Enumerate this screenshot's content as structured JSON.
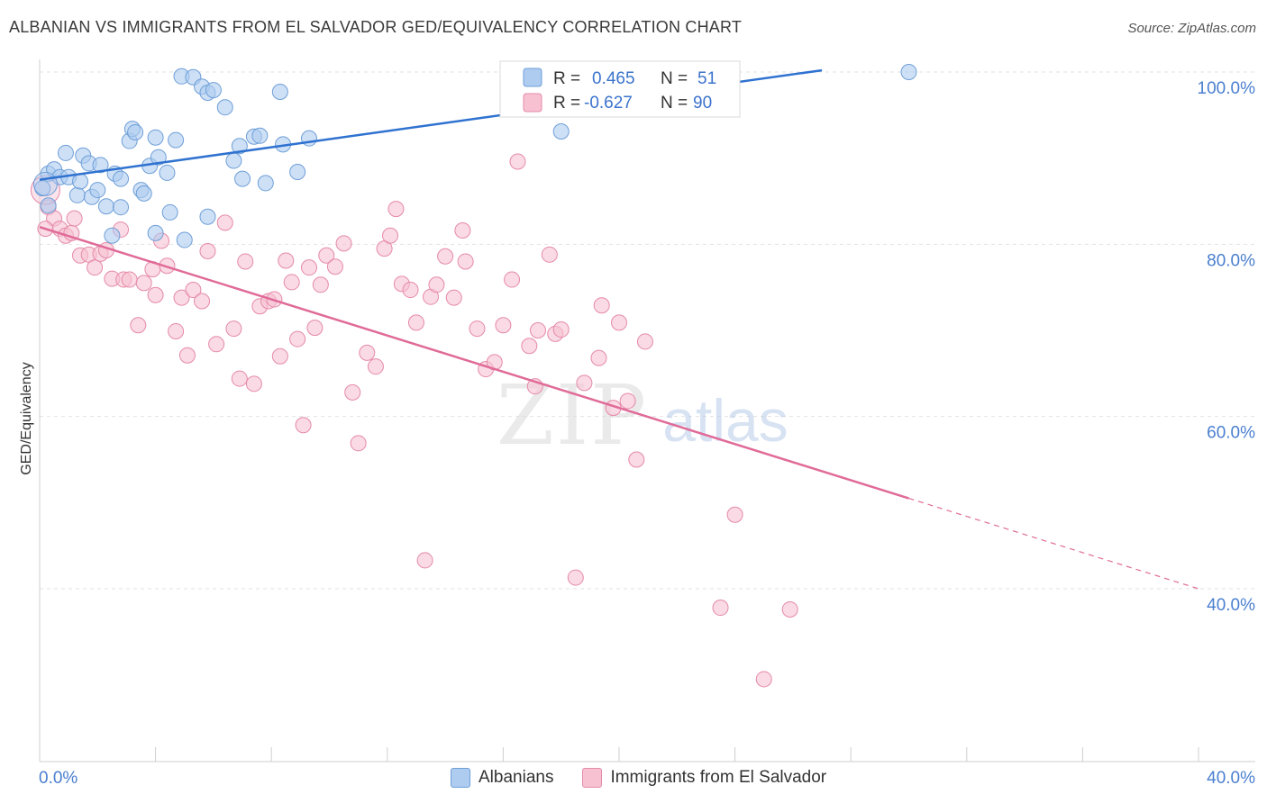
{
  "header": {
    "title": "ALBANIAN VS IMMIGRANTS FROM EL SALVADOR GED/EQUIVALENCY CORRELATION CHART",
    "source": "Source: ZipAtlas.com"
  },
  "watermark": {
    "zip": "ZIP",
    "atlas": "atlas"
  },
  "legend_top": [
    {
      "r_label": "R =",
      "r_value": "0.465",
      "n_label": "N =",
      "n_value": "51"
    },
    {
      "r_label": "R =",
      "r_value": "-0.627",
      "n_label": "N =",
      "n_value": "90"
    }
  ],
  "colors": {
    "blue_fill": "#aecbf0",
    "blue_stroke": "#6e9fd8",
    "blue_line": "#2f72d0",
    "pink_fill": "#f7c1d2",
    "pink_stroke": "#e58aa8",
    "pink_line": "#e06b98",
    "tick_text": "#4a7fcf"
  },
  "chart_data": {
    "type": "scatter",
    "ylabel": "GED/Equivalency",
    "xlabel": "",
    "xlim": [
      0,
      40
    ],
    "ylim": [
      22,
      102
    ],
    "x_tick_labels": [
      {
        "value": 0,
        "label": "0.0%"
      },
      {
        "value": 40,
        "label": "40.0%"
      }
    ],
    "y_tick_labels": [
      {
        "value": 100,
        "label": "100.0%"
      },
      {
        "value": 80,
        "label": "80.0%"
      },
      {
        "value": 60,
        "label": "60.0%"
      },
      {
        "value": 40,
        "label": "40.0%"
      }
    ],
    "grid": true,
    "series": [
      {
        "name": "Albanians",
        "color": "#aecbf0",
        "trendline": {
          "x": [
            0,
            27
          ],
          "y": [
            87.5,
            100.2
          ],
          "style": "solid"
        },
        "points": [
          [
            0.1,
            86.5
          ],
          [
            0.3,
            88.2
          ],
          [
            0.5,
            88.7
          ],
          [
            0.9,
            90.6
          ],
          [
            1.5,
            90.3
          ],
          [
            1.7,
            89.4
          ],
          [
            2.1,
            89.2
          ],
          [
            2.6,
            88.2
          ],
          [
            2.8,
            87.6
          ],
          [
            3.1,
            92.0
          ],
          [
            3.2,
            93.4
          ],
          [
            3.3,
            93.0
          ],
          [
            3.8,
            89.1
          ],
          [
            4.0,
            92.4
          ],
          [
            4.1,
            90.1
          ],
          [
            4.4,
            88.3
          ],
          [
            4.7,
            92.1
          ],
          [
            4.9,
            99.5
          ],
          [
            5.3,
            99.4
          ],
          [
            5.6,
            98.3
          ],
          [
            5.8,
            97.6
          ],
          [
            6.0,
            97.9
          ],
          [
            6.4,
            95.9
          ],
          [
            6.9,
            91.4
          ],
          [
            6.7,
            89.7
          ],
          [
            7.0,
            87.6
          ],
          [
            7.4,
            92.5
          ],
          [
            7.6,
            92.6
          ],
          [
            7.8,
            87.1
          ],
          [
            8.4,
            91.6
          ],
          [
            8.3,
            97.7
          ],
          [
            8.9,
            88.4
          ],
          [
            9.3,
            92.3
          ],
          [
            0.3,
            84.5
          ],
          [
            0.7,
            87.8
          ],
          [
            1.0,
            87.8
          ],
          [
            1.3,
            85.7
          ],
          [
            1.4,
            87.3
          ],
          [
            1.8,
            85.5
          ],
          [
            2.0,
            86.3
          ],
          [
            2.3,
            84.4
          ],
          [
            2.5,
            81.0
          ],
          [
            2.8,
            84.3
          ],
          [
            3.5,
            86.3
          ],
          [
            3.6,
            85.9
          ],
          [
            4.0,
            81.3
          ],
          [
            4.5,
            83.7
          ],
          [
            5.0,
            80.5
          ],
          [
            5.8,
            83.2
          ],
          [
            18.0,
            93.1
          ],
          [
            30.0,
            100.0
          ]
        ]
      },
      {
        "name": "Immigrants from El Salvador",
        "color": "#f7c1d2",
        "trendline": {
          "x": [
            0,
            30
          ],
          "y": [
            82.0,
            50.5
          ],
          "style": "solid",
          "dashed_to": [
            40,
            40.0
          ]
        },
        "points": [
          [
            0.3,
            84.3
          ],
          [
            0.5,
            83.0
          ],
          [
            0.7,
            81.8
          ],
          [
            0.9,
            81.0
          ],
          [
            1.1,
            81.3
          ],
          [
            1.4,
            78.7
          ],
          [
            1.7,
            78.8
          ],
          [
            1.9,
            77.3
          ],
          [
            2.1,
            78.9
          ],
          [
            2.3,
            79.3
          ],
          [
            2.5,
            76.0
          ],
          [
            2.8,
            81.7
          ],
          [
            2.9,
            75.9
          ],
          [
            3.1,
            75.9
          ],
          [
            3.4,
            70.6
          ],
          [
            3.6,
            75.5
          ],
          [
            3.9,
            77.1
          ],
          [
            4.0,
            74.1
          ],
          [
            4.2,
            80.4
          ],
          [
            4.4,
            77.5
          ],
          [
            4.7,
            69.9
          ],
          [
            4.9,
            73.8
          ],
          [
            5.1,
            67.1
          ],
          [
            5.3,
            74.7
          ],
          [
            5.6,
            73.4
          ],
          [
            5.8,
            79.2
          ],
          [
            6.1,
            68.4
          ],
          [
            6.4,
            82.5
          ],
          [
            6.7,
            70.2
          ],
          [
            6.9,
            64.4
          ],
          [
            7.1,
            78.0
          ],
          [
            7.4,
            63.8
          ],
          [
            7.6,
            72.8
          ],
          [
            7.9,
            73.4
          ],
          [
            8.1,
            73.6
          ],
          [
            8.3,
            67.0
          ],
          [
            8.5,
            78.1
          ],
          [
            8.7,
            75.6
          ],
          [
            8.9,
            69.0
          ],
          [
            9.1,
            59.0
          ],
          [
            9.3,
            77.3
          ],
          [
            9.5,
            70.3
          ],
          [
            9.7,
            75.3
          ],
          [
            9.9,
            78.7
          ],
          [
            10.2,
            77.4
          ],
          [
            10.5,
            80.1
          ],
          [
            10.8,
            62.8
          ],
          [
            11.0,
            56.9
          ],
          [
            11.3,
            67.4
          ],
          [
            11.6,
            65.8
          ],
          [
            11.9,
            79.5
          ],
          [
            12.1,
            81.0
          ],
          [
            12.3,
            84.1
          ],
          [
            12.5,
            75.4
          ],
          [
            12.8,
            74.7
          ],
          [
            13.0,
            70.9
          ],
          [
            13.3,
            43.3
          ],
          [
            13.5,
            73.9
          ],
          [
            13.7,
            75.3
          ],
          [
            14.0,
            78.6
          ],
          [
            14.3,
            73.8
          ],
          [
            14.6,
            81.6
          ],
          [
            14.7,
            78.0
          ],
          [
            15.1,
            70.2
          ],
          [
            15.4,
            65.5
          ],
          [
            15.7,
            66.3
          ],
          [
            16.0,
            70.6
          ],
          [
            16.3,
            75.9
          ],
          [
            16.5,
            89.6
          ],
          [
            16.9,
            68.2
          ],
          [
            17.1,
            63.5
          ],
          [
            17.2,
            70.0
          ],
          [
            17.6,
            78.8
          ],
          [
            17.8,
            69.6
          ],
          [
            18.0,
            70.1
          ],
          [
            18.5,
            41.3
          ],
          [
            18.8,
            63.9
          ],
          [
            19.3,
            66.8
          ],
          [
            19.4,
            72.9
          ],
          [
            19.8,
            61.0
          ],
          [
            20.0,
            70.9
          ],
          [
            20.3,
            61.8
          ],
          [
            20.6,
            55.0
          ],
          [
            20.9,
            68.7
          ],
          [
            23.5,
            37.8
          ],
          [
            24.0,
            48.6
          ],
          [
            25.0,
            29.5
          ],
          [
            25.9,
            37.6
          ],
          [
            0.2,
            81.8
          ],
          [
            1.2,
            83.0
          ]
        ]
      }
    ]
  },
  "legend_bottom": [
    {
      "label": "Albanians",
      "color": "#aecbf0",
      "stroke": "#6e9fd8"
    },
    {
      "label": "Immigrants from El Salvador",
      "color": "#f7c1d2",
      "stroke": "#e58aa8"
    }
  ]
}
